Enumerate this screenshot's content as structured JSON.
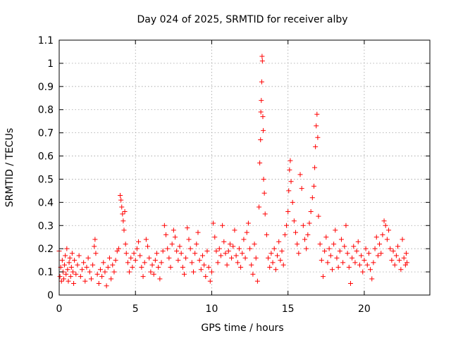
{
  "chart_data": {
    "type": "scatter",
    "title": "Day 024 of 2025, SRMTID for receiver alby",
    "xlabel": "GPS time / hours",
    "ylabel": "SRMTID / TECUs",
    "xlim": [
      0,
      24.3
    ],
    "ylim": [
      0,
      1.1
    ],
    "xticks": [
      0,
      5,
      10,
      15,
      20
    ],
    "xtick_labels": [
      "0",
      "5",
      "10",
      "15",
      "20"
    ],
    "yticks": [
      0,
      0.1,
      0.2,
      0.3,
      0.4,
      0.5,
      0.6,
      0.7,
      0.8,
      0.9,
      1,
      1.1
    ],
    "ytick_labels": [
      "0",
      "0.1",
      "0.2",
      "0.3",
      "0.4",
      "0.5",
      "0.6",
      "0.7",
      "0.8",
      "0.9",
      "1",
      "1.1"
    ],
    "grid": true,
    "marker": "plus",
    "marker_color": "#ff0000",
    "series": [
      {
        "name": "SRMTID",
        "points": [
          [
            0.0,
            0.19
          ],
          [
            0.05,
            0.08
          ],
          [
            0.1,
            0.12
          ],
          [
            0.15,
            0.06
          ],
          [
            0.2,
            0.15
          ],
          [
            0.25,
            0.1
          ],
          [
            0.3,
            0.07
          ],
          [
            0.35,
            0.13
          ],
          [
            0.4,
            0.17
          ],
          [
            0.45,
            0.09
          ],
          [
            0.5,
            0.2
          ],
          [
            0.55,
            0.11
          ],
          [
            0.6,
            0.06
          ],
          [
            0.65,
            0.14
          ],
          [
            0.7,
            0.16
          ],
          [
            0.75,
            0.08
          ],
          [
            0.8,
            0.12
          ],
          [
            0.85,
            0.18
          ],
          [
            0.9,
            0.1
          ],
          [
            0.95,
            0.05
          ],
          [
            1.0,
            0.15
          ],
          [
            1.1,
            0.09
          ],
          [
            1.2,
            0.13
          ],
          [
            1.3,
            0.17
          ],
          [
            1.4,
            0.08
          ],
          [
            1.5,
            0.11
          ],
          [
            1.6,
            0.14
          ],
          [
            1.7,
            0.06
          ],
          [
            1.8,
            0.12
          ],
          [
            1.9,
            0.16
          ],
          [
            2.0,
            0.1
          ],
          [
            2.1,
            0.07
          ],
          [
            2.2,
            0.13
          ],
          [
            2.3,
            0.21
          ],
          [
            2.35,
            0.24
          ],
          [
            2.4,
            0.18
          ],
          [
            2.5,
            0.09
          ],
          [
            2.6,
            0.05
          ],
          [
            2.7,
            0.11
          ],
          [
            2.8,
            0.08
          ],
          [
            2.9,
            0.14
          ],
          [
            3.0,
            0.1
          ],
          [
            3.1,
            0.04
          ],
          [
            3.2,
            0.12
          ],
          [
            3.3,
            0.16
          ],
          [
            3.4,
            0.07
          ],
          [
            3.5,
            0.13
          ],
          [
            3.6,
            0.1
          ],
          [
            3.7,
            0.15
          ],
          [
            3.8,
            0.19
          ],
          [
            3.9,
            0.2
          ],
          [
            4.0,
            0.43
          ],
          [
            4.05,
            0.41
          ],
          [
            4.1,
            0.38
          ],
          [
            4.15,
            0.35
          ],
          [
            4.2,
            0.32
          ],
          [
            4.25,
            0.28
          ],
          [
            4.3,
            0.36
          ],
          [
            4.35,
            0.22
          ],
          [
            4.4,
            0.18
          ],
          [
            4.5,
            0.14
          ],
          [
            4.6,
            0.1
          ],
          [
            4.7,
            0.16
          ],
          [
            4.8,
            0.12
          ],
          [
            4.9,
            0.18
          ],
          [
            5.0,
            0.15
          ],
          [
            5.1,
            0.2
          ],
          [
            5.2,
            0.23
          ],
          [
            5.3,
            0.17
          ],
          [
            5.4,
            0.12
          ],
          [
            5.5,
            0.08
          ],
          [
            5.6,
            0.14
          ],
          [
            5.7,
            0.24
          ],
          [
            5.8,
            0.21
          ],
          [
            5.9,
            0.16
          ],
          [
            6.0,
            0.1
          ],
          [
            6.1,
            0.13
          ],
          [
            6.2,
            0.09
          ],
          [
            6.3,
            0.15
          ],
          [
            6.4,
            0.18
          ],
          [
            6.5,
            0.12
          ],
          [
            6.6,
            0.07
          ],
          [
            6.7,
            0.14
          ],
          [
            6.8,
            0.19
          ],
          [
            6.9,
            0.3
          ],
          [
            7.0,
            0.26
          ],
          [
            7.1,
            0.2
          ],
          [
            7.2,
            0.16
          ],
          [
            7.3,
            0.12
          ],
          [
            7.4,
            0.22
          ],
          [
            7.5,
            0.28
          ],
          [
            7.6,
            0.25
          ],
          [
            7.7,
            0.19
          ],
          [
            7.8,
            0.15
          ],
          [
            7.9,
            0.21
          ],
          [
            8.0,
            0.18
          ],
          [
            8.1,
            0.12
          ],
          [
            8.2,
            0.09
          ],
          [
            8.3,
            0.16
          ],
          [
            8.4,
            0.29
          ],
          [
            8.5,
            0.24
          ],
          [
            8.6,
            0.2
          ],
          [
            8.7,
            0.14
          ],
          [
            8.8,
            0.1
          ],
          [
            8.9,
            0.18
          ],
          [
            9.0,
            0.22
          ],
          [
            9.1,
            0.27
          ],
          [
            9.2,
            0.15
          ],
          [
            9.3,
            0.11
          ],
          [
            9.4,
            0.17
          ],
          [
            9.5,
            0.13
          ],
          [
            9.6,
            0.08
          ],
          [
            9.7,
            0.19
          ],
          [
            9.8,
            0.12
          ],
          [
            9.9,
            0.06
          ],
          [
            10.0,
            0.1
          ],
          [
            10.1,
            0.31
          ],
          [
            10.2,
            0.25
          ],
          [
            10.3,
            0.19
          ],
          [
            10.4,
            0.14
          ],
          [
            10.5,
            0.2
          ],
          [
            10.6,
            0.17
          ],
          [
            10.7,
            0.3
          ],
          [
            10.8,
            0.23
          ],
          [
            10.9,
            0.18
          ],
          [
            11.0,
            0.13
          ],
          [
            11.1,
            0.19
          ],
          [
            11.2,
            0.22
          ],
          [
            11.3,
            0.16
          ],
          [
            11.4,
            0.21
          ],
          [
            11.5,
            0.28
          ],
          [
            11.6,
            0.17
          ],
          [
            11.7,
            0.14
          ],
          [
            11.8,
            0.2
          ],
          [
            11.9,
            0.12
          ],
          [
            12.0,
            0.18
          ],
          [
            12.1,
            0.24
          ],
          [
            12.2,
            0.16
          ],
          [
            12.3,
            0.27
          ],
          [
            12.4,
            0.31
          ],
          [
            12.5,
            0.2
          ],
          [
            12.6,
            0.13
          ],
          [
            12.7,
            0.09
          ],
          [
            12.8,
            0.22
          ],
          [
            12.9,
            0.16
          ],
          [
            13.0,
            0.06
          ],
          [
            13.1,
            0.38
          ],
          [
            13.15,
            0.57
          ],
          [
            13.2,
            0.67
          ],
          [
            13.22,
            0.79
          ],
          [
            13.25,
            0.84
          ],
          [
            13.28,
            0.92
          ],
          [
            13.3,
            1.03
          ],
          [
            13.32,
            1.01
          ],
          [
            13.35,
            0.77
          ],
          [
            13.38,
            0.71
          ],
          [
            13.4,
            0.5
          ],
          [
            13.45,
            0.44
          ],
          [
            13.5,
            0.35
          ],
          [
            13.6,
            0.26
          ],
          [
            13.7,
            0.16
          ],
          [
            13.8,
            0.12
          ],
          [
            13.9,
            0.18
          ],
          [
            14.0,
            0.14
          ],
          [
            14.1,
            0.2
          ],
          [
            14.2,
            0.11
          ],
          [
            14.3,
            0.17
          ],
          [
            14.4,
            0.23
          ],
          [
            14.5,
            0.15
          ],
          [
            14.6,
            0.19
          ],
          [
            14.7,
            0.13
          ],
          [
            14.8,
            0.26
          ],
          [
            14.9,
            0.3
          ],
          [
            15.0,
            0.36
          ],
          [
            15.05,
            0.45
          ],
          [
            15.1,
            0.54
          ],
          [
            15.15,
            0.58
          ],
          [
            15.2,
            0.49
          ],
          [
            15.3,
            0.4
          ],
          [
            15.4,
            0.32
          ],
          [
            15.5,
            0.27
          ],
          [
            15.6,
            0.22
          ],
          [
            15.7,
            0.18
          ],
          [
            15.8,
            0.52
          ],
          [
            15.9,
            0.46
          ],
          [
            16.0,
            0.3
          ],
          [
            16.1,
            0.24
          ],
          [
            16.2,
            0.2
          ],
          [
            16.3,
            0.26
          ],
          [
            16.4,
            0.31
          ],
          [
            16.5,
            0.36
          ],
          [
            16.6,
            0.42
          ],
          [
            16.7,
            0.47
          ],
          [
            16.75,
            0.55
          ],
          [
            16.8,
            0.64
          ],
          [
            16.85,
            0.73
          ],
          [
            16.9,
            0.78
          ],
          [
            16.95,
            0.68
          ],
          [
            17.0,
            0.34
          ],
          [
            17.1,
            0.22
          ],
          [
            17.2,
            0.15
          ],
          [
            17.3,
            0.08
          ],
          [
            17.4,
            0.19
          ],
          [
            17.5,
            0.25
          ],
          [
            17.6,
            0.14
          ],
          [
            17.7,
            0.2
          ],
          [
            17.8,
            0.17
          ],
          [
            17.9,
            0.11
          ],
          [
            18.0,
            0.22
          ],
          [
            18.1,
            0.28
          ],
          [
            18.2,
            0.16
          ],
          [
            18.3,
            0.12
          ],
          [
            18.4,
            0.19
          ],
          [
            18.5,
            0.24
          ],
          [
            18.6,
            0.14
          ],
          [
            18.7,
            0.21
          ],
          [
            18.8,
            0.3
          ],
          [
            18.9,
            0.18
          ],
          [
            19.0,
            0.12
          ],
          [
            19.1,
            0.05
          ],
          [
            19.2,
            0.16
          ],
          [
            19.3,
            0.21
          ],
          [
            19.4,
            0.14
          ],
          [
            19.5,
            0.19
          ],
          [
            19.6,
            0.23
          ],
          [
            19.7,
            0.13
          ],
          [
            19.8,
            0.17
          ],
          [
            19.9,
            0.1
          ],
          [
            20.0,
            0.15
          ],
          [
            20.1,
            0.2
          ],
          [
            20.2,
            0.13
          ],
          [
            20.3,
            0.18
          ],
          [
            20.4,
            0.11
          ],
          [
            20.5,
            0.07
          ],
          [
            20.6,
            0.14
          ],
          [
            20.7,
            0.2
          ],
          [
            20.8,
            0.25
          ],
          [
            20.9,
            0.17
          ],
          [
            21.0,
            0.22
          ],
          [
            21.1,
            0.18
          ],
          [
            21.2,
            0.26
          ],
          [
            21.3,
            0.32
          ],
          [
            21.4,
            0.3
          ],
          [
            21.5,
            0.24
          ],
          [
            21.6,
            0.28
          ],
          [
            21.7,
            0.2
          ],
          [
            21.8,
            0.15
          ],
          [
            21.9,
            0.19
          ],
          [
            22.0,
            0.13
          ],
          [
            22.1,
            0.17
          ],
          [
            22.2,
            0.21
          ],
          [
            22.3,
            0.15
          ],
          [
            22.4,
            0.11
          ],
          [
            22.5,
            0.24
          ],
          [
            22.6,
            0.16
          ],
          [
            22.7,
            0.13
          ],
          [
            22.75,
            0.18
          ],
          [
            22.8,
            0.14
          ]
        ]
      }
    ]
  }
}
